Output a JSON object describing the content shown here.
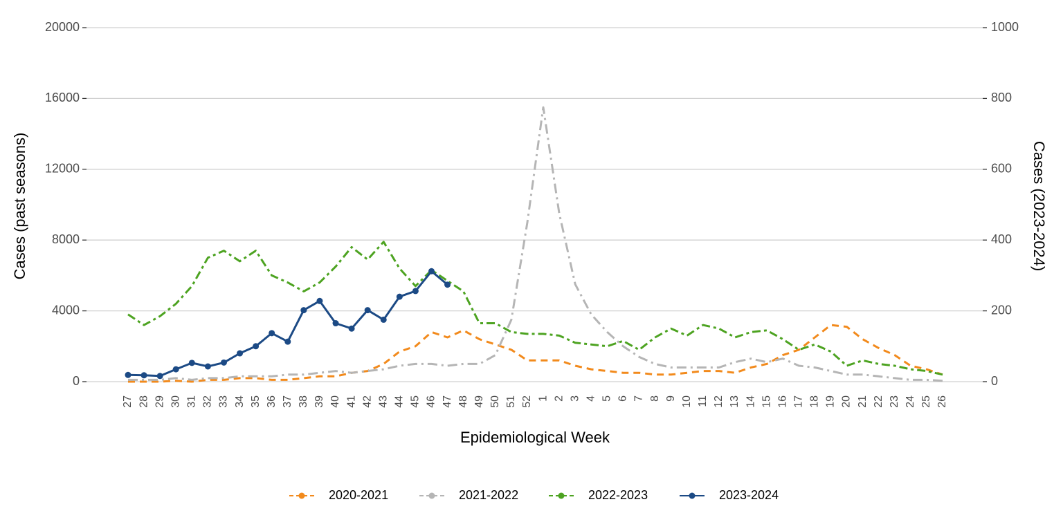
{
  "chart_data": {
    "type": "line",
    "x_label": "Epidemiological Week",
    "y_label": "Cases (past seasons)",
    "y2_label": "Cases (2023-2024)",
    "categories": [
      "27",
      "28",
      "29",
      "30",
      "31",
      "32",
      "33",
      "34",
      "35",
      "36",
      "37",
      "38",
      "39",
      "40",
      "41",
      "42",
      "43",
      "44",
      "45",
      "46",
      "47",
      "48",
      "49",
      "50",
      "51",
      "52",
      "1",
      "2",
      "3",
      "4",
      "5",
      "6",
      "7",
      "8",
      "9",
      "10",
      "11",
      "12",
      "13",
      "14",
      "15",
      "16",
      "17",
      "18",
      "19",
      "20",
      "21",
      "22",
      "23",
      "24",
      "25",
      "26"
    ],
    "ylim": [
      0,
      20000
    ],
    "yticks": [
      0,
      4000,
      8000,
      12000,
      16000,
      20000
    ],
    "y2lim": [
      0,
      1000
    ],
    "y2ticks": [
      0,
      200,
      400,
      600,
      800,
      1000
    ],
    "grid": true,
    "legend": "bottom",
    "series": [
      {
        "name": "2020-2021",
        "color": "#f28a1c",
        "dash": "10,7",
        "values": [
          0,
          0,
          0,
          50,
          0,
          100,
          100,
          200,
          200,
          100,
          100,
          200,
          300,
          300,
          500,
          600,
          1000,
          1700,
          2000,
          2800,
          2500,
          2900,
          2400,
          2100,
          1800,
          1200,
          1200,
          1200,
          900,
          700,
          600,
          500,
          500,
          400,
          400,
          500,
          600,
          600,
          500,
          800,
          1000,
          1500,
          1800,
          2500,
          3200,
          3100,
          2400,
          1900,
          1500,
          900,
          700,
          400
        ]
      },
      {
        "name": "2021-2022",
        "color": "#b5b5b5",
        "dash": "14,6,3,6",
        "values": [
          100,
          100,
          100,
          200,
          100,
          200,
          200,
          300,
          300,
          300,
          400,
          400,
          500,
          600,
          500,
          600,
          700,
          900,
          1000,
          1000,
          900,
          1000,
          1000,
          1500,
          3500,
          9000,
          15500,
          9500,
          5500,
          3800,
          2800,
          2000,
          1400,
          1000,
          800,
          800,
          800,
          800,
          1100,
          1300,
          1100,
          1300,
          900,
          800,
          600,
          400,
          400,
          300,
          200,
          100,
          100,
          50
        ]
      },
      {
        "name": "2022-2023",
        "color": "#4da321",
        "dash": "12,5,4,5",
        "values": [
          3800,
          3200,
          3700,
          4400,
          5400,
          7000,
          7400,
          6800,
          7400,
          6000,
          5600,
          5100,
          5600,
          6500,
          7600,
          6900,
          7900,
          6400,
          5400,
          6300,
          5700,
          5100,
          3300,
          3300,
          2800,
          2700,
          2700,
          2600,
          2200,
          2100,
          2000,
          2300,
          1800,
          2500,
          3000,
          2600,
          3200,
          3000,
          2500,
          2800,
          2900,
          2400,
          1800,
          2100,
          1700,
          900,
          1200,
          1000,
          900,
          700,
          600,
          400
        ]
      },
      {
        "name": "2023-2024",
        "color": "#1c4a85",
        "axis": "y2",
        "markers": true,
        "values": [
          19,
          18,
          16,
          35,
          53,
          43,
          54,
          80,
          100,
          137,
          113,
          202,
          228,
          165,
          150,
          202,
          175,
          240,
          256,
          312,
          274,
          null,
          null,
          null,
          null,
          null,
          null,
          null,
          null,
          null,
          null,
          null,
          null,
          null,
          null,
          null,
          null,
          null,
          null,
          null,
          null,
          null,
          null,
          null,
          null,
          null,
          null,
          null,
          null,
          null,
          null,
          null
        ]
      }
    ]
  }
}
